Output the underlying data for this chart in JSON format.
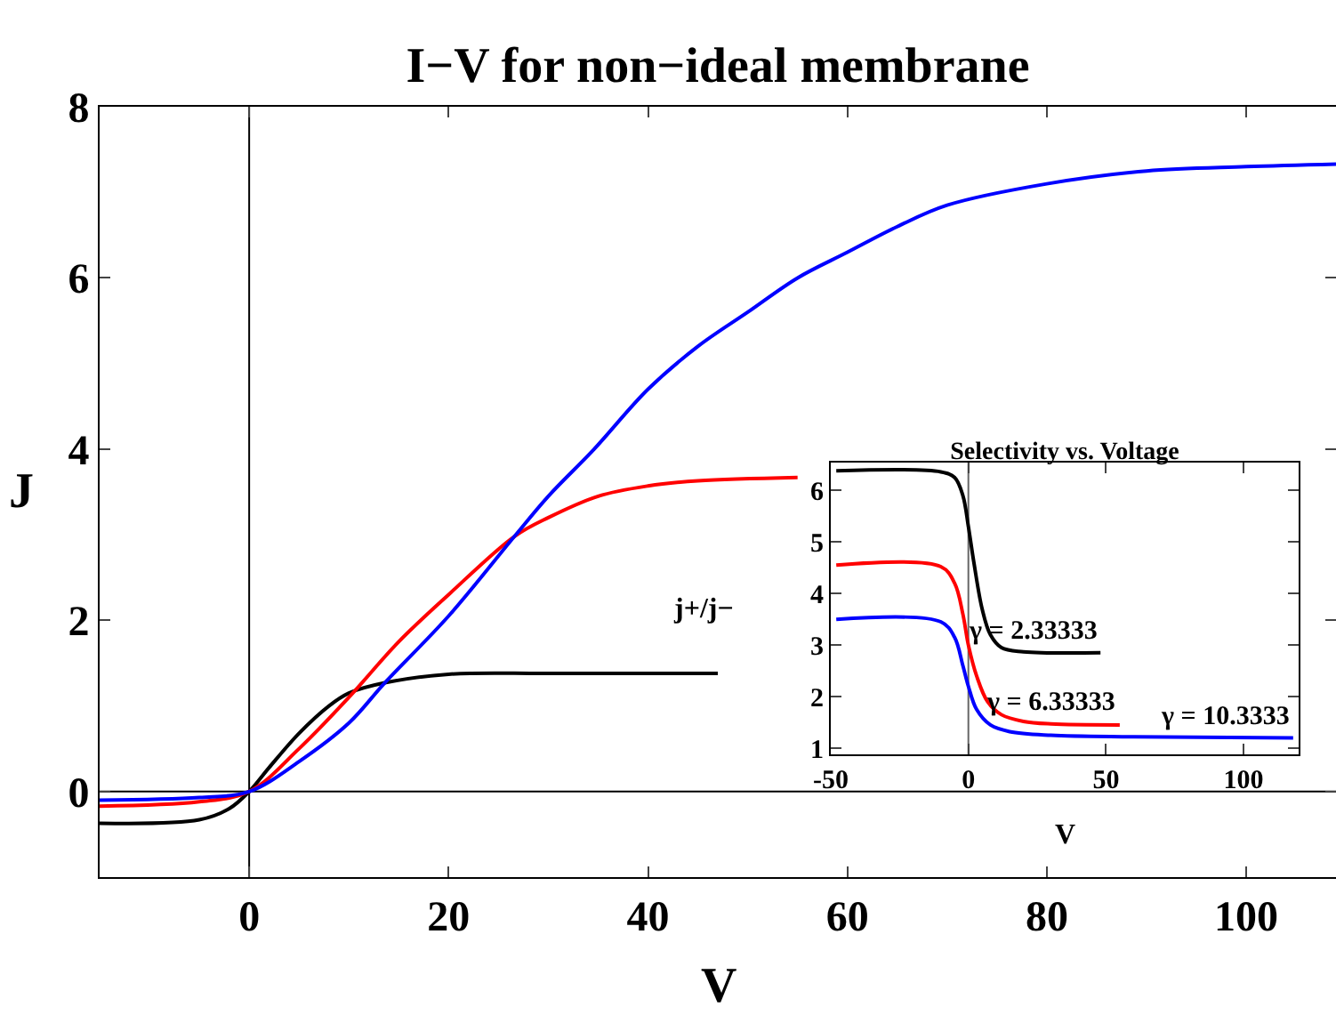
{
  "chart_data": [
    {
      "type": "line",
      "title": "I−V for non−ideal membrane",
      "xlabel": "V",
      "ylabel": "J",
      "xlim": [
        -15,
        109
      ],
      "ylim": [
        -1,
        8
      ],
      "xticks": [
        0,
        20,
        40,
        60,
        80,
        100
      ],
      "yticks": [
        0,
        2,
        4,
        6,
        8
      ],
      "ref_lines": [
        {
          "axis": "x",
          "value": 0,
          "color": "#000000"
        },
        {
          "axis": "y",
          "value": 0,
          "color": "#000000"
        }
      ],
      "series": [
        {
          "color": "#000000",
          "x": [
            -15,
            -5,
            -2,
            0,
            2,
            5,
            8,
            10,
            13.6,
            20,
            30,
            47
          ],
          "values": [
            -0.37,
            -0.33,
            -0.2,
            0,
            0.28,
            0.68,
            1.0,
            1.15,
            1.27,
            1.37,
            1.38,
            1.38
          ]
        },
        {
          "color": "#ff0000",
          "x": [
            -15,
            -5,
            0,
            5,
            10,
            15,
            20,
            26.6,
            30,
            35,
            40,
            45,
            55
          ],
          "values": [
            -0.17,
            -0.12,
            0,
            0.5,
            1.1,
            1.75,
            2.3,
            2.98,
            3.2,
            3.45,
            3.57,
            3.63,
            3.67
          ]
        },
        {
          "color": "#0000ff",
          "x": [
            -15,
            -5,
            0,
            5,
            10,
            13.6,
            20,
            26.6,
            30,
            34.6,
            40,
            45,
            50,
            55,
            60,
            65,
            70,
            80,
            90,
            100,
            109
          ],
          "values": [
            -0.1,
            -0.07,
            0,
            0.35,
            0.8,
            1.27,
            2.05,
            2.98,
            3.45,
            4.0,
            4.7,
            5.2,
            5.6,
            6.0,
            6.3,
            6.6,
            6.85,
            7.1,
            7.25,
            7.3,
            7.33
          ]
        }
      ]
    },
    {
      "type": "line",
      "title": "Selectivity vs. Voltage",
      "xlabel": "V",
      "ylabel": "j+/j−",
      "xlim": [
        -50,
        120
      ],
      "ylim": [
        0.88,
        6.54
      ],
      "xticks": [
        -50,
        0,
        50,
        100
      ],
      "yticks": [
        1,
        2,
        3,
        4,
        5,
        6
      ],
      "ref_lines": [
        {
          "axis": "x",
          "value": 0,
          "color": "#666666"
        }
      ],
      "series": [
        {
          "name": "γ = 2.33333",
          "color": "#000000",
          "x": [
            -48,
            -10,
            -5,
            -2,
            0,
            2,
            5,
            8,
            12,
            20,
            48
          ],
          "values": [
            6.38,
            6.36,
            6.25,
            5.9,
            5.3,
            4.6,
            3.7,
            3.2,
            2.95,
            2.87,
            2.85
          ]
        },
        {
          "name": "γ = 6.33333",
          "color": "#ff0000",
          "x": [
            -48,
            -10,
            -5,
            -2,
            0,
            3,
            7,
            12,
            20,
            30,
            55
          ],
          "values": [
            4.55,
            4.52,
            4.2,
            3.6,
            3.0,
            2.4,
            1.9,
            1.65,
            1.52,
            1.47,
            1.45
          ]
        },
        {
          "name": "γ = 10.3333",
          "color": "#0000ff",
          "x": [
            -48,
            -10,
            -5,
            -2,
            0,
            3,
            8,
            15,
            30,
            60,
            118
          ],
          "values": [
            3.5,
            3.45,
            3.15,
            2.6,
            2.2,
            1.75,
            1.45,
            1.32,
            1.25,
            1.22,
            1.2
          ]
        }
      ]
    }
  ]
}
